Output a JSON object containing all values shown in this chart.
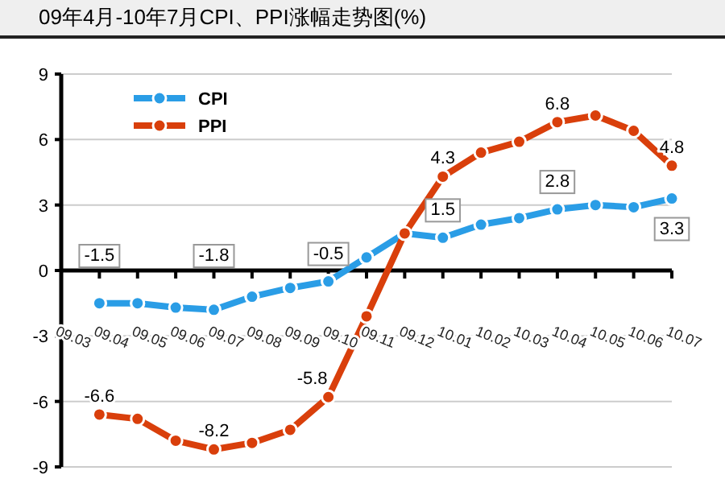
{
  "chart_data": {
    "type": "line",
    "title": "09年4月-10年7月CPI、PPI涨幅走势图(%)",
    "categories": [
      "09.03",
      "09.04",
      "09.05",
      "09.06",
      "09.07",
      "09.08",
      "09.09",
      "09.10",
      "09.11",
      "09.12",
      "10.01",
      "10.02",
      "10.03",
      "10.04",
      "10.05",
      "10.06",
      "10.07"
    ],
    "series": [
      {
        "name": "CPI",
        "color": "#2a9de6",
        "values": [
          null,
          -1.5,
          -1.5,
          -1.7,
          -1.8,
          -1.2,
          -0.8,
          -0.5,
          0.6,
          1.7,
          1.5,
          2.1,
          2.4,
          2.8,
          3.0,
          2.9,
          3.3
        ],
        "value_labels": [
          null,
          "-1.5",
          null,
          null,
          "-1.8",
          null,
          null,
          "-0.5",
          null,
          null,
          "1.5",
          null,
          null,
          "2.8",
          null,
          null,
          "3.3"
        ]
      },
      {
        "name": "PPI",
        "color": "#d93f0b",
        "values": [
          null,
          -6.6,
          -6.8,
          -7.8,
          -8.2,
          -7.9,
          -7.3,
          -5.8,
          -2.1,
          1.7,
          4.3,
          5.4,
          5.9,
          6.8,
          7.1,
          6.4,
          4.8
        ],
        "value_labels": [
          null,
          "-6.6",
          null,
          null,
          "-8.2",
          null,
          null,
          "-5.8",
          null,
          null,
          "4.3",
          null,
          null,
          "6.8",
          null,
          null,
          "4.8"
        ]
      }
    ],
    "ylim": [
      -9,
      9
    ],
    "yticks": [
      -9,
      -6,
      -3,
      0,
      3,
      6,
      9
    ],
    "grid": "y",
    "legend": "top left",
    "marker": "circle",
    "line_style": "solid"
  }
}
